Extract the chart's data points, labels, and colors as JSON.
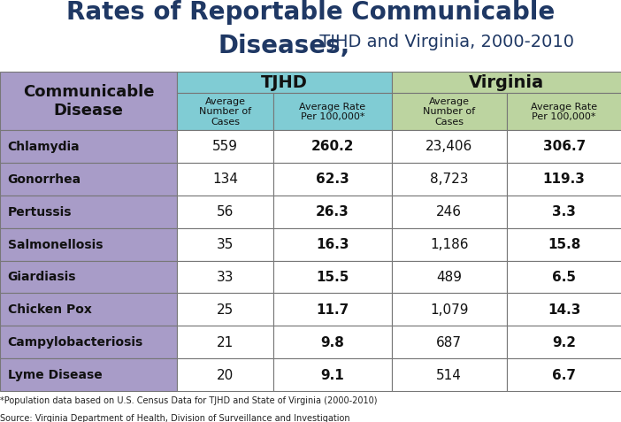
{
  "title_line1": "Rates of Reportable Communicable",
  "title_line2_bold": "Diseases,",
  "title_line2_normal": " TJHD and Virginia, 2000-2010",
  "col_header_1": "TJHD",
  "col_header_2": "Virginia",
  "sub_headers": [
    "Average\nNumber of\nCases",
    "Average Rate\nPer 100,000*",
    "Average\nNumber of\nCases",
    "Average Rate\nPer 100,000*"
  ],
  "row_header": "Communicable\nDisease",
  "diseases": [
    "Chlamydia",
    "Gonorrhea",
    "Pertussis",
    "Salmonellosis",
    "Giardiasis",
    "Chicken Pox",
    "Campylobacteriosis",
    "Lyme Disease"
  ],
  "tjhd_cases": [
    "559",
    "134",
    "56",
    "35",
    "33",
    "25",
    "21",
    "20"
  ],
  "tjhd_rates": [
    "260.2",
    "62.3",
    "26.3",
    "16.3",
    "15.5",
    "11.7",
    "9.8",
    "9.1"
  ],
  "va_cases": [
    "23,406",
    "8,723",
    "246",
    "1,186",
    "489",
    "1,079",
    "687",
    "514"
  ],
  "va_rates": [
    "306.7",
    "119.3",
    "3.3",
    "15.8",
    "6.5",
    "14.3",
    "9.2",
    "6.7"
  ],
  "header_bg_purple": "#a89cc8",
  "header_bg_blue": "#80ccd4",
  "header_bg_green": "#bcd4a0",
  "row_bg_white": "#ffffff",
  "border_color": "#777777",
  "title_color": "#1f3864",
  "footnote1": "*Population data based on U.S. Census Data for TJHD and State of Virginia (2000-2010)",
  "footnote2": "Source: Virginia Department of Health, Division of Surveillance and Investigation",
  "title_fontsize": 20,
  "header_fontsize": 13,
  "subheader_fontsize": 8,
  "disease_fontsize": 10,
  "data_fontsize": 11
}
